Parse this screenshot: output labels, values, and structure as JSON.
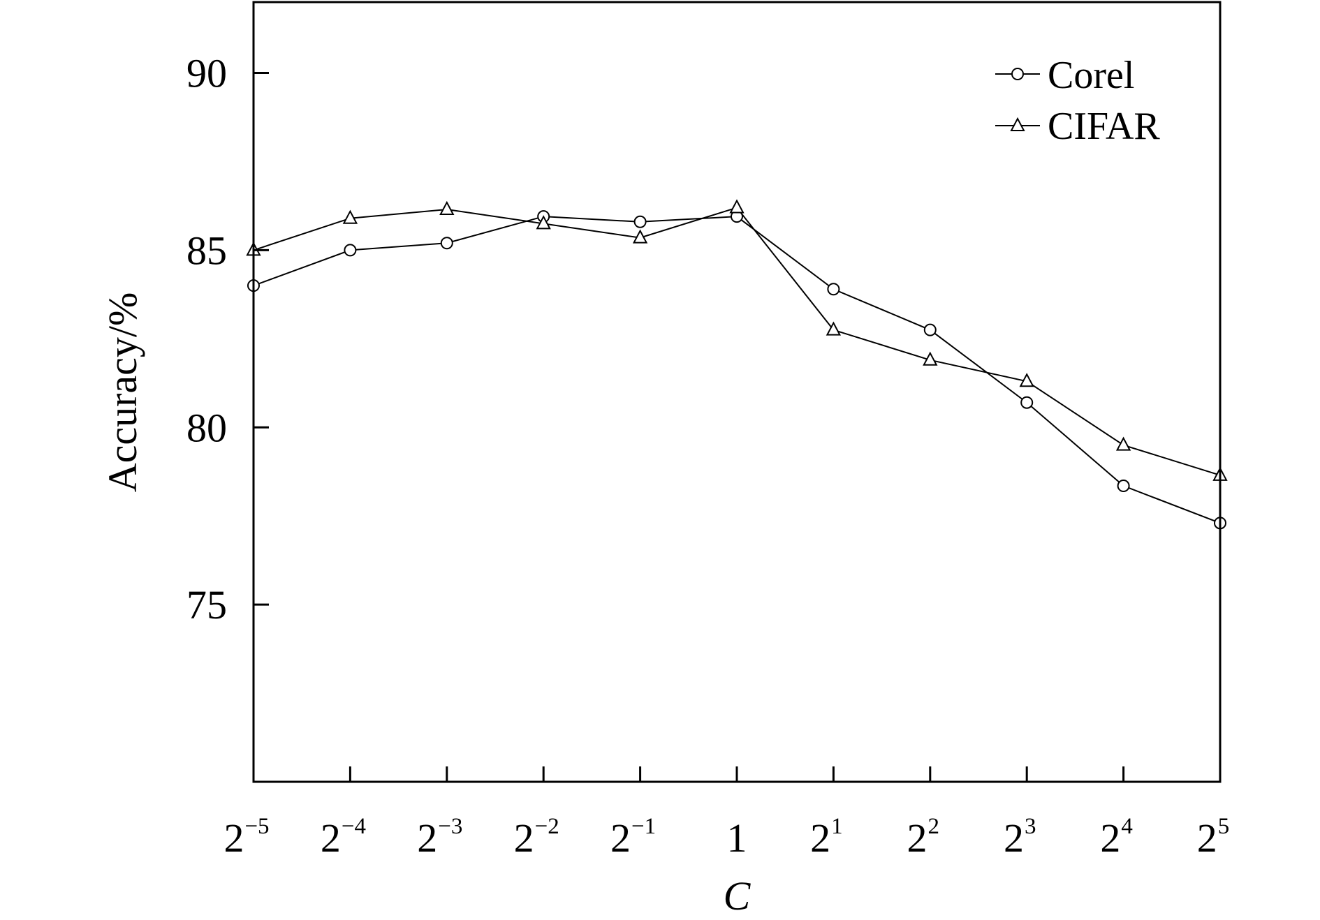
{
  "chart_data": {
    "type": "line",
    "title": "",
    "xlabel": "C",
    "ylabel": "Accuracy/%",
    "categories": [
      {
        "base": "2",
        "exp": "−5"
      },
      {
        "base": "2",
        "exp": "−4"
      },
      {
        "base": "2",
        "exp": "−3"
      },
      {
        "base": "2",
        "exp": "−2"
      },
      {
        "base": "2",
        "exp": "−1"
      },
      {
        "base": "1",
        "exp": ""
      },
      {
        "base": "2",
        "exp": "1"
      },
      {
        "base": "2",
        "exp": "2"
      },
      {
        "base": "2",
        "exp": "3"
      },
      {
        "base": "2",
        "exp": "4"
      },
      {
        "base": "2",
        "exp": "5"
      }
    ],
    "x": [
      0.03125,
      0.0625,
      0.125,
      0.25,
      0.5,
      1,
      2,
      4,
      8,
      16,
      32
    ],
    "x_scale": "log2",
    "ylim": [
      70,
      92
    ],
    "yticks": [
      "75",
      "80",
      "85",
      "90"
    ],
    "ytick_values": [
      75,
      80,
      85,
      90
    ],
    "grid": false,
    "legend_position": "top-right",
    "series": [
      {
        "name": "Corel",
        "marker": "circle",
        "values": [
          84.0,
          85.0,
          85.2,
          85.95,
          85.8,
          85.95,
          83.9,
          82.75,
          80.7,
          78.35,
          77.3
        ]
      },
      {
        "name": "CIFAR",
        "marker": "triangle",
        "values": [
          85.0,
          85.9,
          86.15,
          85.75,
          85.35,
          86.2,
          82.75,
          81.9,
          81.3,
          79.5,
          78.65
        ]
      }
    ],
    "colors": {
      "line": "#000000",
      "marker_fill": "#ffffff",
      "background": "#ffffff"
    }
  }
}
